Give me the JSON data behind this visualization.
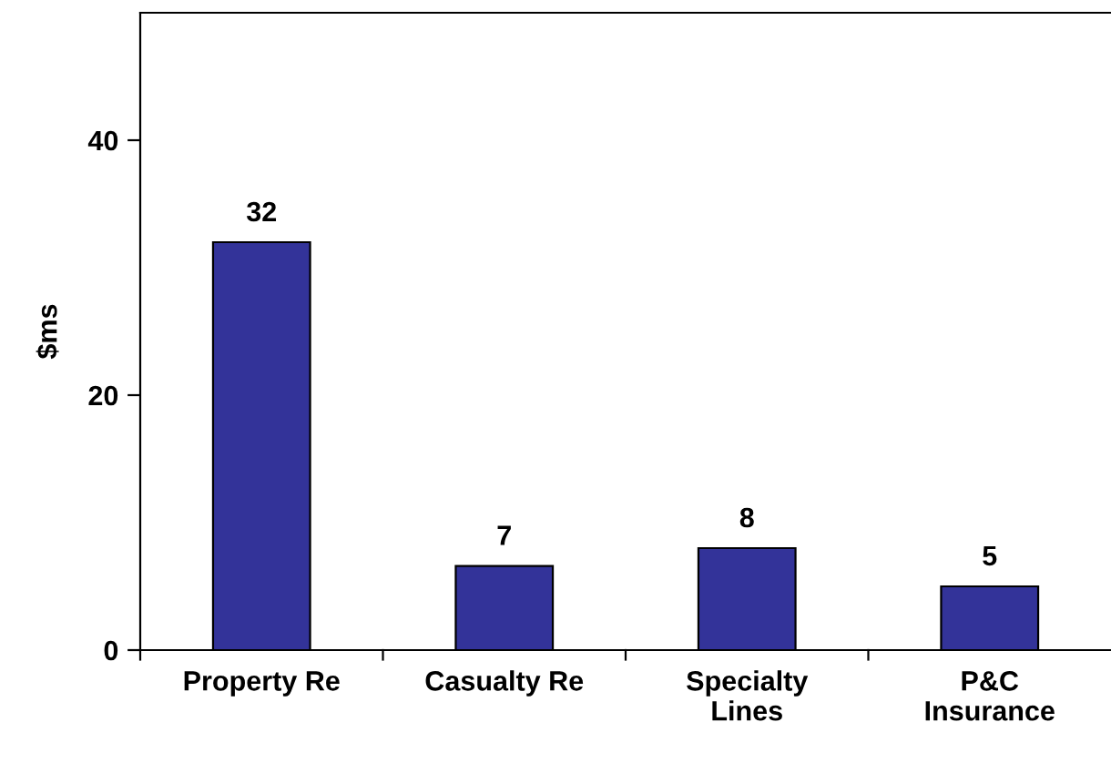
{
  "chart_data": {
    "type": "bar",
    "ylabel": "$ms",
    "categories": [
      "Property Re",
      "Casualty Re",
      "Specialty\nLines",
      "P&C\nInsurance"
    ],
    "values": [
      32,
      6.6,
      8,
      5
    ],
    "value_labels": [
      "32",
      "7",
      "8",
      "5"
    ],
    "color": "#333399",
    "ylim": [
      0,
      50
    ],
    "yticks": [
      0,
      20,
      40
    ],
    "grid": false,
    "legend": false
  }
}
